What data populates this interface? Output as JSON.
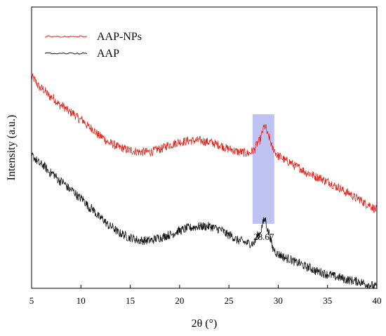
{
  "chart_data": {
    "type": "line",
    "xlabel": "2θ (°)",
    "ylabel": "Intensity (a.u.)",
    "xlim": [
      5,
      40
    ],
    "ylim": [
      0,
      100
    ],
    "x_ticks": [
      5,
      10,
      15,
      20,
      25,
      30,
      35,
      40
    ],
    "y_ticks_labeled": false,
    "grid": false,
    "legend_position": "top-left",
    "series": [
      {
        "name": "AAP-NPs",
        "color": "#e8251d",
        "noise_amplitude": 1.6,
        "points": [
          [
            5,
            75
          ],
          [
            6,
            71
          ],
          [
            7,
            68
          ],
          [
            8,
            65
          ],
          [
            9,
            62.5
          ],
          [
            10,
            60
          ],
          [
            11,
            57
          ],
          [
            12,
            54
          ],
          [
            13,
            51.5
          ],
          [
            14,
            50
          ],
          [
            15,
            49
          ],
          [
            16,
            48.5
          ],
          [
            17,
            48.5
          ],
          [
            18,
            49.5
          ],
          [
            19,
            51
          ],
          [
            20,
            52
          ],
          [
            21,
            52.5
          ],
          [
            22,
            52.5
          ],
          [
            23,
            52
          ],
          [
            24,
            51
          ],
          [
            25,
            49.5
          ],
          [
            26,
            48.5
          ],
          [
            27,
            48
          ],
          [
            27.5,
            49
          ],
          [
            28,
            52
          ],
          [
            28.67,
            57.5
          ],
          [
            29,
            54
          ],
          [
            29.5,
            49.5
          ],
          [
            30,
            47
          ],
          [
            31,
            45
          ],
          [
            32,
            43
          ],
          [
            33,
            41
          ],
          [
            34,
            39.5
          ],
          [
            35,
            38
          ],
          [
            36,
            36
          ],
          [
            37,
            34
          ],
          [
            38,
            32
          ],
          [
            39,
            30
          ],
          [
            40,
            28
          ]
        ]
      },
      {
        "name": "AAP",
        "color": "#111111",
        "noise_amplitude": 1.6,
        "points": [
          [
            5,
            47
          ],
          [
            6,
            44
          ],
          [
            7,
            41
          ],
          [
            8,
            38
          ],
          [
            9,
            35
          ],
          [
            10,
            32
          ],
          [
            11,
            28.5
          ],
          [
            12,
            25
          ],
          [
            13,
            22
          ],
          [
            14,
            19.5
          ],
          [
            15,
            18
          ],
          [
            16,
            17
          ],
          [
            17,
            17
          ],
          [
            18,
            18
          ],
          [
            19,
            19
          ],
          [
            20,
            20.5
          ],
          [
            21,
            21.5
          ],
          [
            22,
            22
          ],
          [
            23,
            22
          ],
          [
            24,
            21
          ],
          [
            25,
            19
          ],
          [
            26,
            17
          ],
          [
            27,
            16
          ],
          [
            27.5,
            16
          ],
          [
            28,
            19
          ],
          [
            28.67,
            24.5
          ],
          [
            29,
            20
          ],
          [
            29.5,
            14
          ],
          [
            30,
            12
          ],
          [
            31,
            10.5
          ],
          [
            32,
            9
          ],
          [
            33,
            7.5
          ],
          [
            34,
            6
          ],
          [
            35,
            5
          ],
          [
            36,
            4
          ],
          [
            37,
            3
          ],
          [
            38,
            2.5
          ],
          [
            39,
            1.5
          ],
          [
            40,
            0.5
          ]
        ]
      }
    ],
    "highlight_band": {
      "x_start": 27.4,
      "x_end": 29.6,
      "color": "#b4b8f0"
    },
    "annotations": [
      {
        "label": "28.67",
        "x": 28.67
      }
    ]
  }
}
